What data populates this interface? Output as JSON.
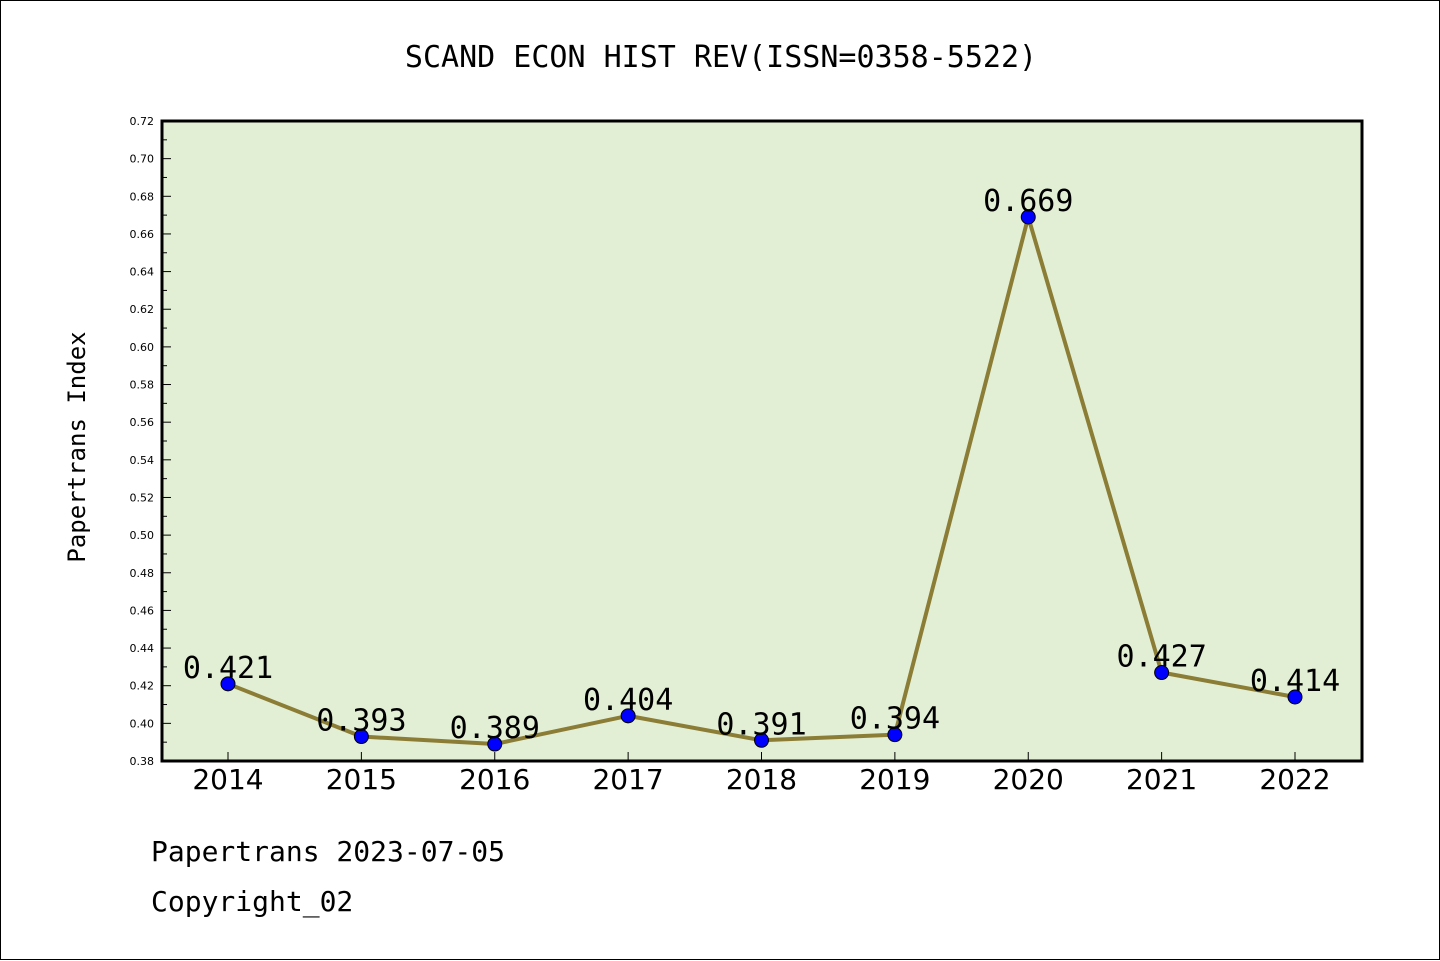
{
  "chart_data": {
    "type": "line",
    "title": "SCAND ECON HIST REV(ISSN=0358-5522)",
    "xlabel": "",
    "ylabel": "Papertrans Index",
    "categories": [
      "2014",
      "2015",
      "2016",
      "2017",
      "2018",
      "2019",
      "2020",
      "2021",
      "2022"
    ],
    "series": [
      {
        "values": [
          0.421,
          0.393,
          0.389,
          0.404,
          0.391,
          0.394,
          0.669,
          0.427,
          0.414
        ],
        "labels": [
          "0.421",
          "0.393",
          "0.389",
          "0.404",
          "0.391",
          "0.394",
          "0.669",
          "0.427",
          "0.414"
        ]
      }
    ],
    "ylim": [
      0.38,
      0.72
    ],
    "yticks": [
      "0.38",
      "0.40",
      "0.42",
      "0.44",
      "0.46",
      "0.48",
      "0.50",
      "0.52",
      "0.54",
      "0.56",
      "0.58",
      "0.60",
      "0.62",
      "0.64",
      "0.66",
      "0.68",
      "0.70",
      "0.72"
    ],
    "grid": false,
    "colors": {
      "plot_background": "#e2efd5",
      "line": "#8b7d35",
      "marker": "#0000ff"
    }
  },
  "footer": {
    "line1": "Papertrans 2023-07-05",
    "line2": "Copyright_02"
  }
}
